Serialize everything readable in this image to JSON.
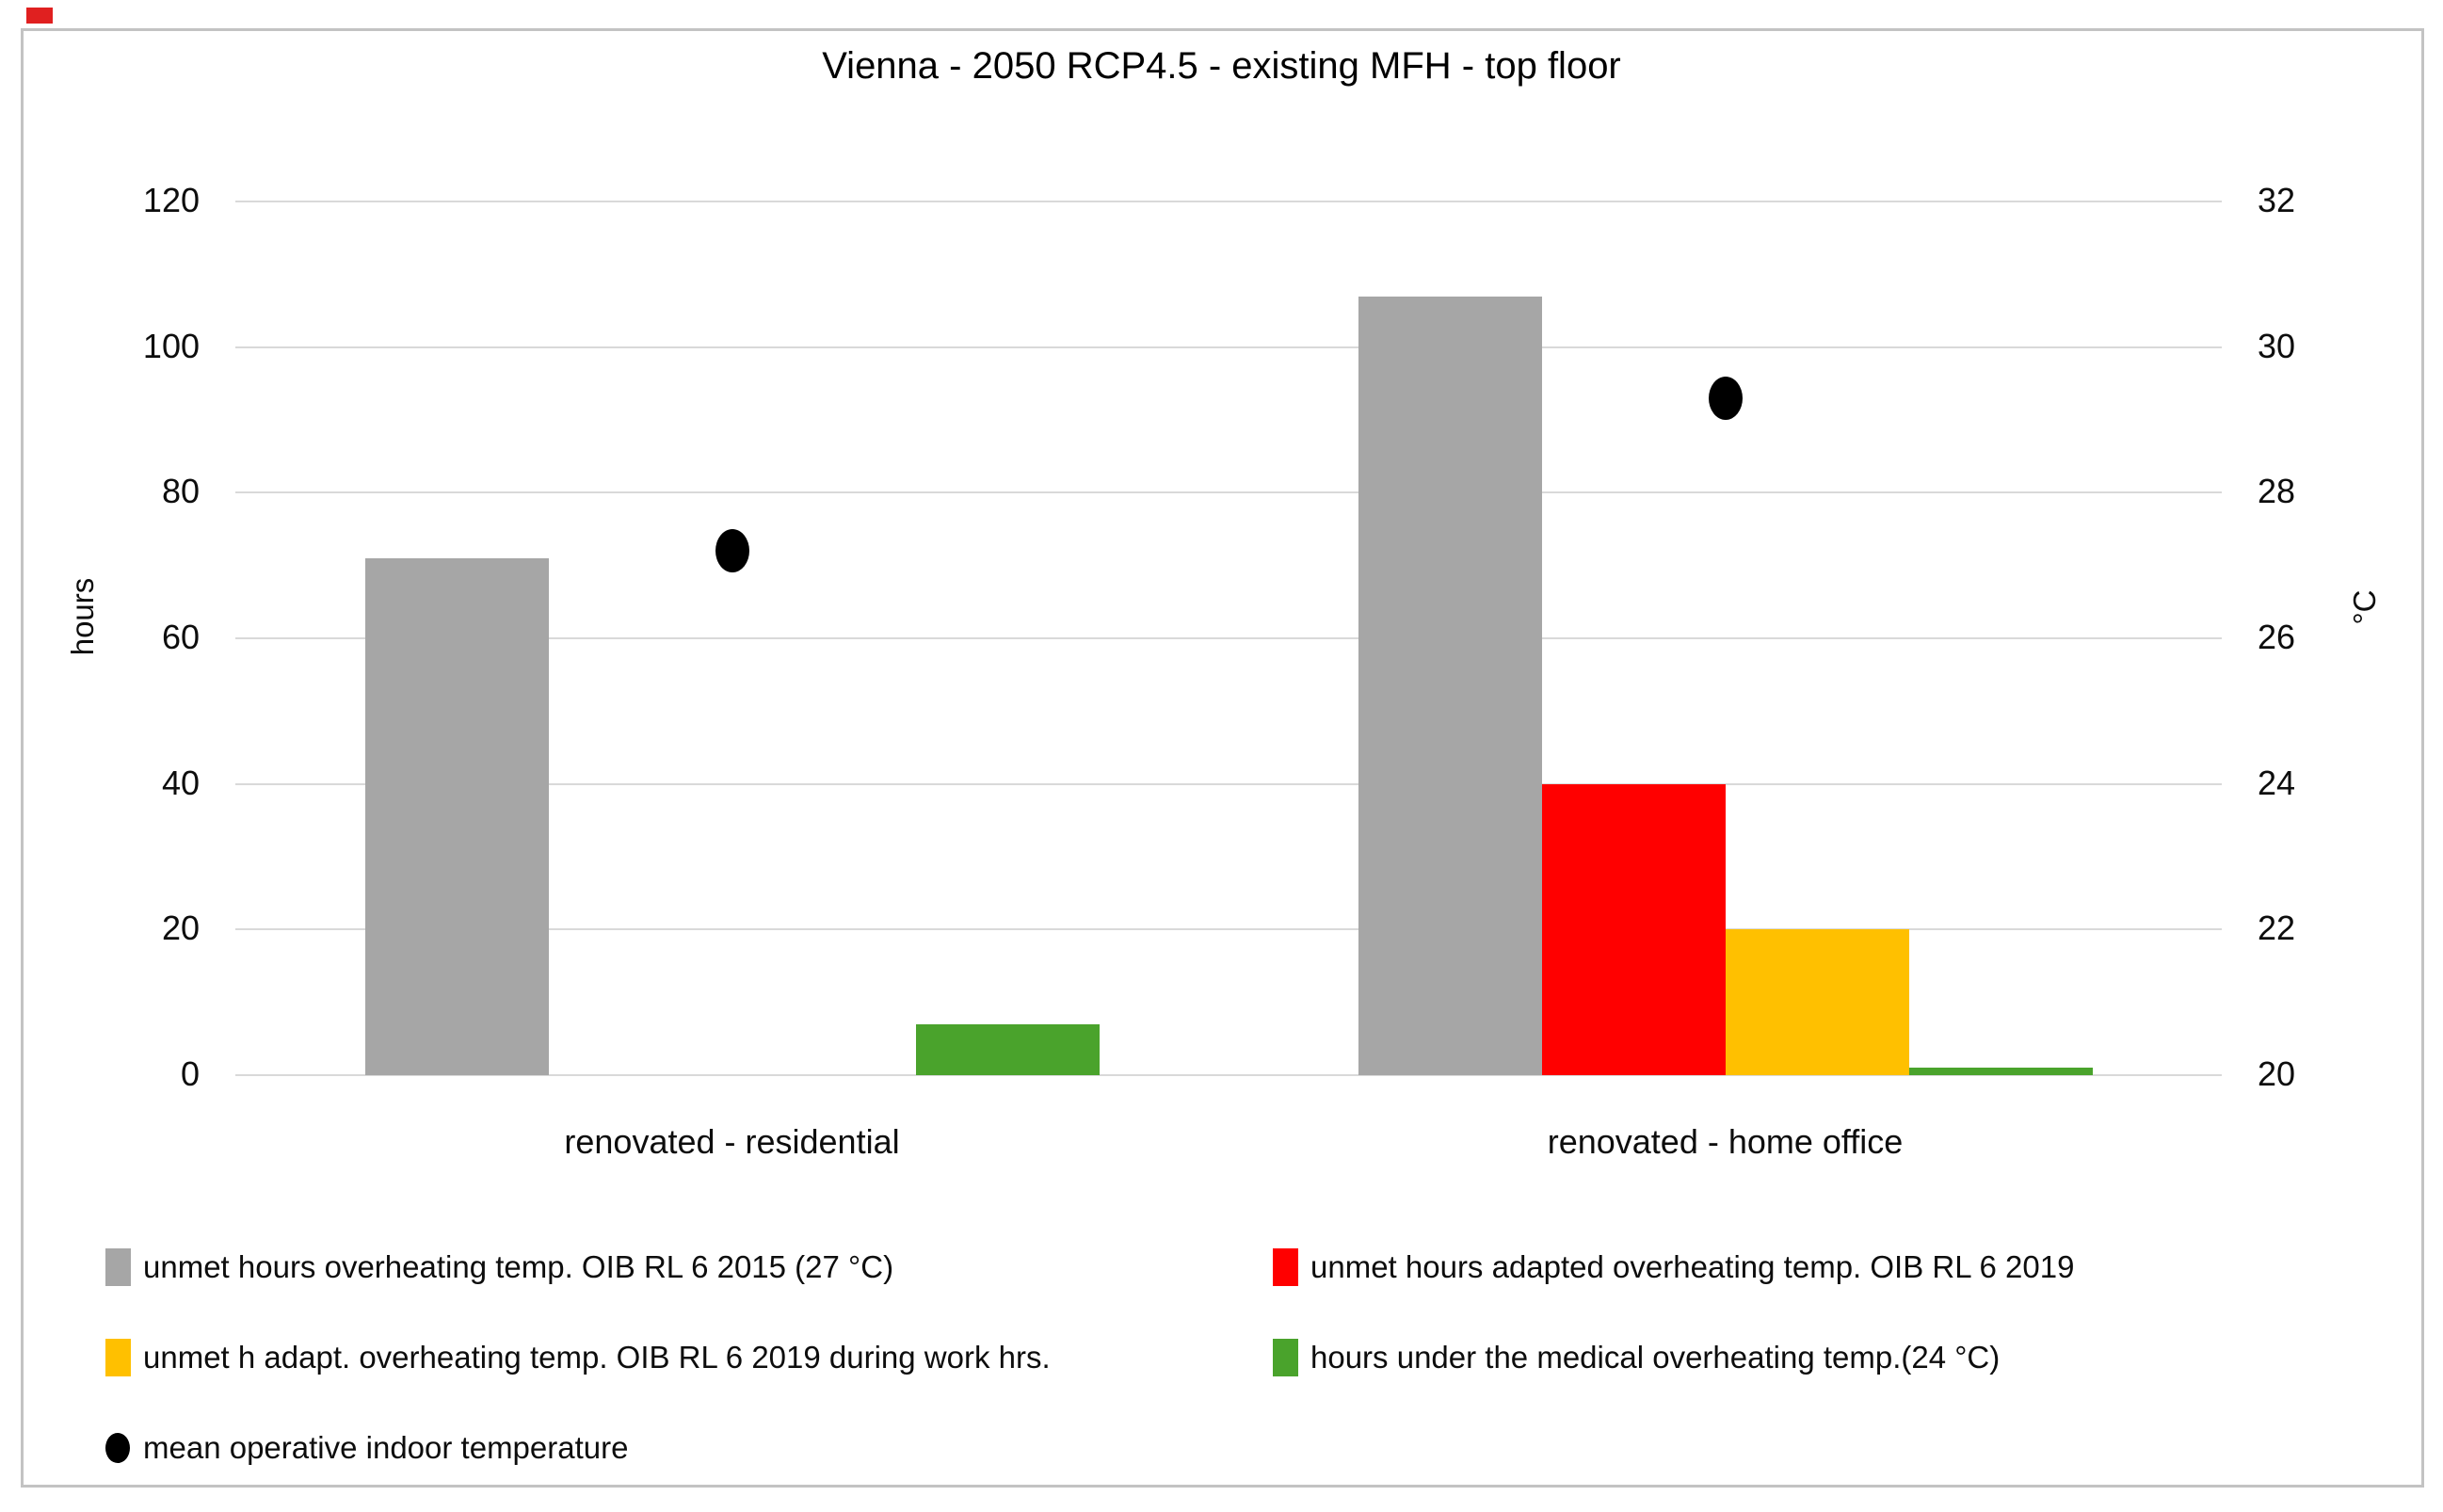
{
  "chart_data": {
    "type": "bar",
    "subtype": "clustered-bar-with-scatter-overlay",
    "title": "Vienna - 2050 RCP4.5 - existing MFH - top floor",
    "categories": [
      "renovated - residential",
      "renovated - home office"
    ],
    "series": [
      {
        "name": "unmet hours overheating temp. OIB RL 6 2015 (27 °C)",
        "color": "#a6a6a6",
        "axis": "left",
        "values": [
          71,
          107
        ]
      },
      {
        "name": "unmet hours adapted overheating temp. OIB RL 6 2019",
        "color": "#ff0000",
        "axis": "left",
        "values": [
          0,
          40
        ]
      },
      {
        "name": "unmet h adapt. overheating temp. OIB RL 6 2019 during work hrs.",
        "color": "#ffc000",
        "axis": "left",
        "values": [
          0,
          20
        ]
      },
      {
        "name": "hours under the medical overheating temp.(24 °C)",
        "color": "#4aa32c",
        "axis": "left",
        "values": [
          7,
          1
        ]
      }
    ],
    "scatter_series": {
      "name": "mean operative indoor temperature",
      "color": "#000000",
      "axis": "right",
      "marker": "ellipse",
      "values": [
        27.2,
        29.3
      ]
    },
    "y_left": {
      "label": "hours",
      "min": 0,
      "max": 120,
      "step": 20,
      "ticks": [
        "0",
        "20",
        "40",
        "60",
        "80",
        "100",
        "120"
      ]
    },
    "y_right": {
      "label": "°C",
      "min": 20,
      "max": 32,
      "step": 2,
      "ticks": [
        "20",
        "22",
        "24",
        "26",
        "28",
        "30",
        "32"
      ]
    },
    "grid": true,
    "gridline_color": "#d9d9d9",
    "legend_position": "bottom",
    "background_color": "#ffffff",
    "border_color": "#c3c3c3",
    "artifact_color": "#e02020"
  }
}
